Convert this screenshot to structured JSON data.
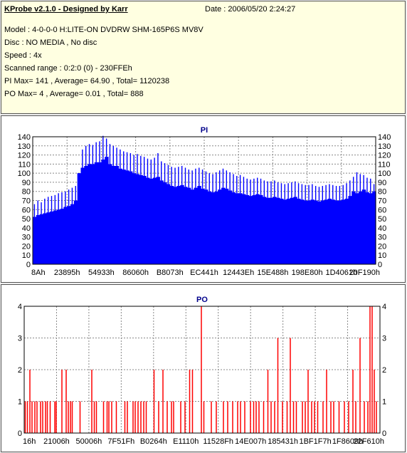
{
  "header": {
    "title": "KProbe v2.1.0 - Designed by Karr",
    "date": "Date : 2006/05/20 2:24:27",
    "lines": [
      "Model : 4-0-0-0 H:LITE-ON DVDRW SHM-165P6S MV8V",
      "Disc : NO MEDIA , No disc",
      "Speed : 4x",
      "Scanned range : 0:2:0 (0) - 230FFEh",
      "PI Max= 141 , Average= 64.90 , Total= 1120238",
      "PO Max= 4 , Average= 0.01 , Total= 888"
    ]
  },
  "colors": {
    "pi": "#0000ff",
    "po": "#ff0000",
    "panel": "#ffffe1",
    "title": "#00008b",
    "grid": "#888888"
  },
  "chart_data": [
    {
      "type": "area",
      "title": "PI",
      "xlabel": "",
      "ylabel": "",
      "ylim": [
        0,
        140
      ],
      "yticks": [
        0,
        10,
        20,
        30,
        40,
        50,
        60,
        70,
        80,
        90,
        100,
        110,
        120,
        130,
        140
      ],
      "xtick_labels": [
        "8Ah",
        "23895h",
        "54933h",
        "86060h",
        "B8073h",
        "EC441h",
        "12443Eh",
        "15E488h",
        "198E80h",
        "1D4061h",
        "20F190h"
      ],
      "grid": true,
      "series": [
        {
          "values": [
            52,
            54,
            55,
            56,
            57,
            58,
            59,
            60,
            61,
            63,
            64,
            66,
            70,
            100,
            106,
            108,
            110,
            110,
            112,
            112,
            115,
            118,
            110,
            108,
            108,
            105,
            104,
            103,
            102,
            100,
            99,
            98,
            97,
            95,
            94,
            95,
            96,
            92,
            90,
            88,
            86,
            85,
            86,
            87,
            85,
            84,
            82,
            84,
            86,
            83,
            82,
            80,
            79,
            80,
            82,
            84,
            83,
            81,
            79,
            78,
            78,
            77,
            76,
            75,
            76,
            77,
            76,
            74,
            73,
            73,
            74,
            73,
            72,
            71,
            72,
            73,
            74,
            72,
            71,
            70,
            70,
            71,
            70,
            69,
            70,
            71,
            72,
            71,
            70,
            70,
            71,
            72,
            75,
            80,
            78,
            80,
            82,
            79,
            78,
            80
          ],
          "peaks": [
            66,
            70,
            68,
            72,
            74,
            75,
            76,
            78,
            79,
            80,
            82,
            84,
            86,
            88,
            126,
            130,
            132,
            131,
            134,
            135,
            141,
            138,
            132,
            130,
            128,
            126,
            124,
            123,
            122,
            120,
            121,
            119,
            118,
            116,
            115,
            117,
            122,
            113,
            111,
            109,
            107,
            106,
            107,
            108,
            106,
            104,
            103,
            105,
            106,
            104,
            102,
            100,
            99,
            101,
            103,
            105,
            103,
            101,
            99,
            97,
            98,
            96,
            94,
            93,
            94,
            95,
            94,
            92,
            91,
            91,
            92,
            90,
            89,
            88,
            89,
            90,
            91,
            89,
            88,
            87,
            87,
            88,
            86,
            85,
            86,
            87,
            88,
            87,
            86,
            86,
            87,
            89,
            92,
            96,
            101,
            99,
            98,
            95,
            94,
            88
          ]
        }
      ]
    },
    {
      "type": "bar",
      "title": "PO",
      "xlabel": "",
      "ylabel": "",
      "ylim": [
        0,
        4
      ],
      "yticks": [
        0,
        1,
        2,
        3,
        4
      ],
      "xtick_labels": [
        "16h",
        "21006h",
        "50006h",
        "7F51Fh",
        "B0264h",
        "E1110h",
        "11528Fh",
        "14E007h",
        "185431h",
        "1BF1F7h",
        "1F8609h",
        "22F610h"
      ],
      "grid": true,
      "x_max": 100,
      "spikes": [
        {
          "x": 0.3,
          "v": 1
        },
        {
          "x": 0.9,
          "v": 1
        },
        {
          "x": 1.6,
          "v": 2
        },
        {
          "x": 2.2,
          "v": 1
        },
        {
          "x": 3.0,
          "v": 1
        },
        {
          "x": 3.6,
          "v": 1
        },
        {
          "x": 4.6,
          "v": 1
        },
        {
          "x": 5.2,
          "v": 1
        },
        {
          "x": 6.0,
          "v": 1
        },
        {
          "x": 6.5,
          "v": 1
        },
        {
          "x": 7.3,
          "v": 1
        },
        {
          "x": 8.6,
          "v": 1
        },
        {
          "x": 9.0,
          "v": 1
        },
        {
          "x": 10.6,
          "v": 2
        },
        {
          "x": 11.8,
          "v": 2
        },
        {
          "x": 12.4,
          "v": 1
        },
        {
          "x": 13.0,
          "v": 1
        },
        {
          "x": 13.5,
          "v": 1
        },
        {
          "x": 15.7,
          "v": 1
        },
        {
          "x": 19.0,
          "v": 2
        },
        {
          "x": 19.7,
          "v": 1
        },
        {
          "x": 20.3,
          "v": 1
        },
        {
          "x": 22.3,
          "v": 1
        },
        {
          "x": 23.3,
          "v": 1
        },
        {
          "x": 23.8,
          "v": 1
        },
        {
          "x": 24.6,
          "v": 1
        },
        {
          "x": 25.9,
          "v": 1
        },
        {
          "x": 28.3,
          "v": 1
        },
        {
          "x": 29.0,
          "v": 1
        },
        {
          "x": 30.6,
          "v": 1
        },
        {
          "x": 31.2,
          "v": 1
        },
        {
          "x": 32.0,
          "v": 1
        },
        {
          "x": 32.8,
          "v": 1
        },
        {
          "x": 33.6,
          "v": 1
        },
        {
          "x": 34.3,
          "v": 1
        },
        {
          "x": 36.5,
          "v": 2
        },
        {
          "x": 37.8,
          "v": 1
        },
        {
          "x": 39.0,
          "v": 2
        },
        {
          "x": 40.2,
          "v": 1
        },
        {
          "x": 41.4,
          "v": 1
        },
        {
          "x": 42.0,
          "v": 1
        },
        {
          "x": 44.0,
          "v": 1
        },
        {
          "x": 45.2,
          "v": 1
        },
        {
          "x": 46.5,
          "v": 2
        },
        {
          "x": 47.3,
          "v": 2
        },
        {
          "x": 49.8,
          "v": 4
        },
        {
          "x": 50.5,
          "v": 1
        },
        {
          "x": 52.6,
          "v": 1
        },
        {
          "x": 54.0,
          "v": 1
        },
        {
          "x": 56.0,
          "v": 1
        },
        {
          "x": 57.2,
          "v": 1
        },
        {
          "x": 58.6,
          "v": 1
        },
        {
          "x": 60.0,
          "v": 1
        },
        {
          "x": 60.8,
          "v": 1
        },
        {
          "x": 62.0,
          "v": 1
        },
        {
          "x": 63.6,
          "v": 1
        },
        {
          "x": 64.5,
          "v": 1
        },
        {
          "x": 65.2,
          "v": 1
        },
        {
          "x": 66.0,
          "v": 1
        },
        {
          "x": 67.3,
          "v": 1
        },
        {
          "x": 68.5,
          "v": 2
        },
        {
          "x": 69.4,
          "v": 1
        },
        {
          "x": 70.4,
          "v": 1
        },
        {
          "x": 71.3,
          "v": 3
        },
        {
          "x": 72.6,
          "v": 1
        },
        {
          "x": 73.9,
          "v": 1
        },
        {
          "x": 74.8,
          "v": 3
        },
        {
          "x": 75.7,
          "v": 1
        },
        {
          "x": 76.5,
          "v": 1
        },
        {
          "x": 78.2,
          "v": 1
        },
        {
          "x": 79.0,
          "v": 1
        },
        {
          "x": 79.8,
          "v": 2
        },
        {
          "x": 80.8,
          "v": 1
        },
        {
          "x": 81.6,
          "v": 1
        },
        {
          "x": 82.5,
          "v": 1
        },
        {
          "x": 84.0,
          "v": 1
        },
        {
          "x": 85.0,
          "v": 2
        },
        {
          "x": 86.2,
          "v": 1
        },
        {
          "x": 87.0,
          "v": 1
        },
        {
          "x": 88.5,
          "v": 1
        },
        {
          "x": 90.0,
          "v": 1
        },
        {
          "x": 91.2,
          "v": 1
        },
        {
          "x": 92.4,
          "v": 2
        },
        {
          "x": 93.2,
          "v": 1
        },
        {
          "x": 94.4,
          "v": 3
        },
        {
          "x": 95.6,
          "v": 1
        },
        {
          "x": 96.6,
          "v": 1
        },
        {
          "x": 97.2,
          "v": 4
        },
        {
          "x": 97.8,
          "v": 4
        },
        {
          "x": 98.4,
          "v": 2
        },
        {
          "x": 99.0,
          "v": 1
        }
      ]
    }
  ]
}
